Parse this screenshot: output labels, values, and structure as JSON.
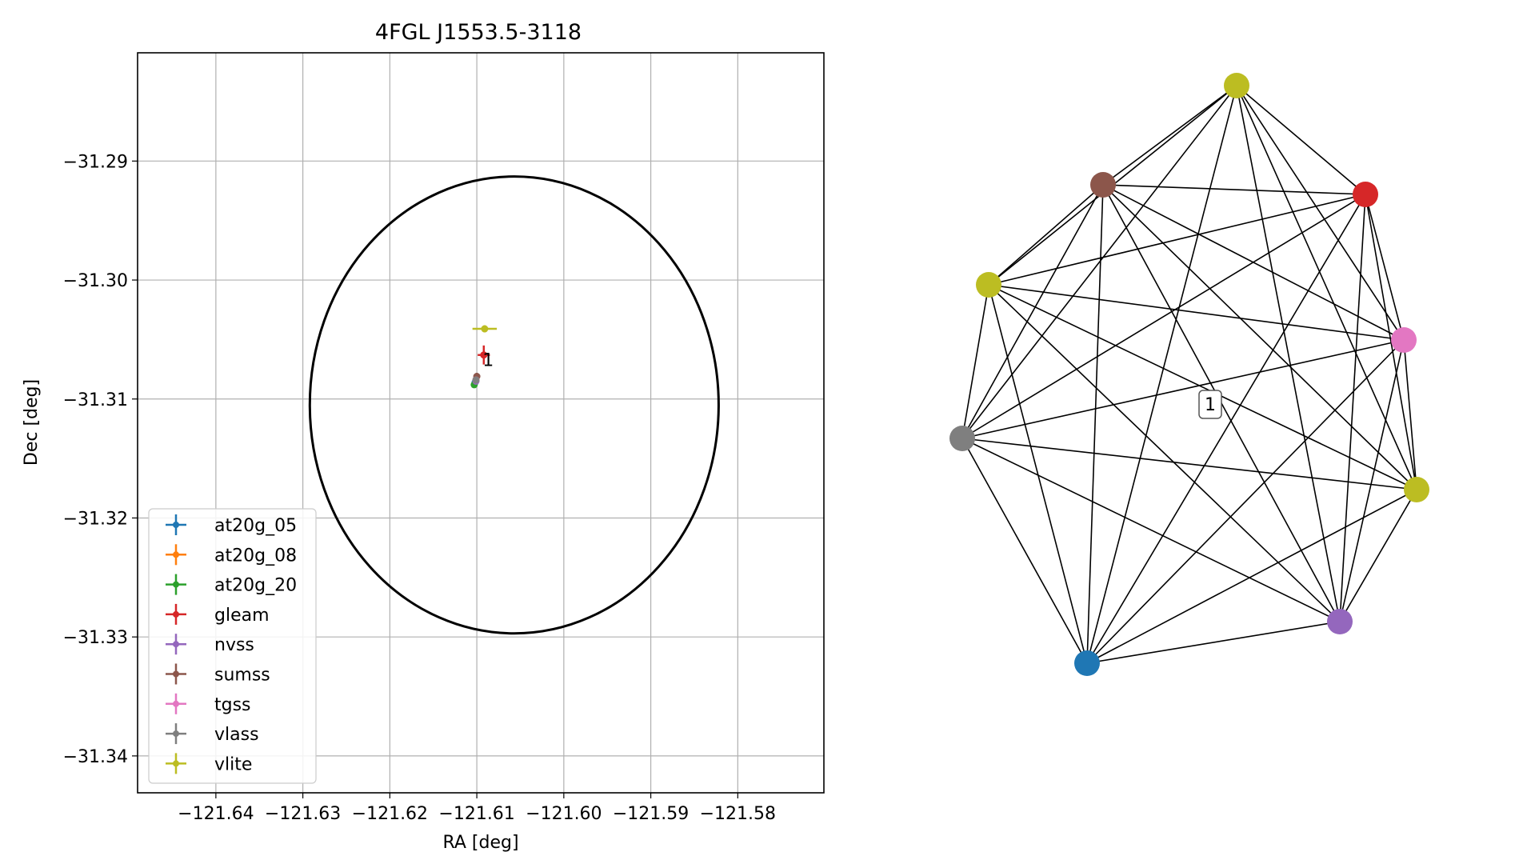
{
  "chart_data": [
    {
      "type": "scatter",
      "title": "4FGL J1553.5-3118",
      "xlabel": "RA [deg]",
      "ylabel": "Dec [deg]",
      "xlim": [
        -121.649,
        -121.5701
      ],
      "ylim": [
        -31.3431,
        -31.2809
      ],
      "xticks": [
        {
          "value": -121.64,
          "label": "−121.64"
        },
        {
          "value": -121.63,
          "label": "−121.63"
        },
        {
          "value": -121.62,
          "label": "−121.62"
        },
        {
          "value": -121.61,
          "label": "−121.61"
        },
        {
          "value": -121.6,
          "label": "−121.60"
        },
        {
          "value": -121.59,
          "label": "−121.59"
        },
        {
          "value": -121.58,
          "label": "−121.58"
        }
      ],
      "yticks": [
        {
          "value": -31.29,
          "label": "−31.29"
        },
        {
          "value": -31.3,
          "label": "−31.30"
        },
        {
          "value": -31.31,
          "label": "−31.31"
        },
        {
          "value": -31.32,
          "label": "−31.32"
        },
        {
          "value": -31.33,
          "label": "−31.33"
        },
        {
          "value": -31.34,
          "label": "−31.34"
        }
      ],
      "grid": true,
      "legend_position": "lower-left",
      "ellipse": {
        "center_ra": -121.6057,
        "center_dec": -31.3105,
        "semi_ra": 0.0235,
        "semi_dec": 0.0192,
        "color": "#000000"
      },
      "annotation": {
        "text": "1",
        "ra": -121.6087,
        "dec": -31.3065
      },
      "series": [
        {
          "name": "at20g_05",
          "color": "#1f77b4",
          "ra": -121.6102,
          "dec": -31.3086,
          "ra_err": 0.0002,
          "dec_err": 0.0002
        },
        {
          "name": "at20g_08",
          "color": "#ff7f0e",
          "ra": -121.6101,
          "dec": -31.3084,
          "ra_err": 0.0002,
          "dec_err": 0.0002
        },
        {
          "name": "at20g_20",
          "color": "#2ca02c",
          "ra": -121.6103,
          "dec": -31.3088,
          "ra_err": 0.0002,
          "dec_err": 0.0002
        },
        {
          "name": "gleam",
          "color": "#d62728",
          "ra": -121.6092,
          "dec": -31.3063,
          "ra_err": 0.0007,
          "dec_err": 0.0008
        },
        {
          "name": "nvss",
          "color": "#9467bd",
          "ra": -121.6101,
          "dec": -31.3085,
          "ra_err": 0.0002,
          "dec_err": 0.0002
        },
        {
          "name": "sumss",
          "color": "#8c564b",
          "ra": -121.61,
          "dec": -31.3081,
          "ra_err": 0.0003,
          "dec_err": 0.0003
        },
        {
          "name": "tgss",
          "color": "#e377c2",
          "ra": -121.6101,
          "dec": -31.3084,
          "ra_err": 0.0002,
          "dec_err": 0.0002
        },
        {
          "name": "vlass",
          "color": "#7f7f7f",
          "ra": -121.6101,
          "dec": -31.3084,
          "ra_err": 0.0001,
          "dec_err": 0.0001
        },
        {
          "name": "vlite",
          "color": "#bcbd22",
          "ra": -121.6091,
          "dec": -31.3041,
          "ra_err": 0.0014,
          "dec_err": 0.0003
        }
      ]
    },
    {
      "type": "network",
      "label": "1",
      "edge_color": "#000000",
      "nodes": [
        {
          "color": "#bcbd22"
        },
        {
          "color": "#8c564b"
        },
        {
          "color": "#d62728"
        },
        {
          "color": "#bcbd22"
        },
        {
          "color": "#e377c2"
        },
        {
          "color": "#7f7f7f"
        },
        {
          "color": "#bcbd22"
        },
        {
          "color": "#9467bd"
        },
        {
          "color": "#1f77b4"
        }
      ]
    }
  ]
}
